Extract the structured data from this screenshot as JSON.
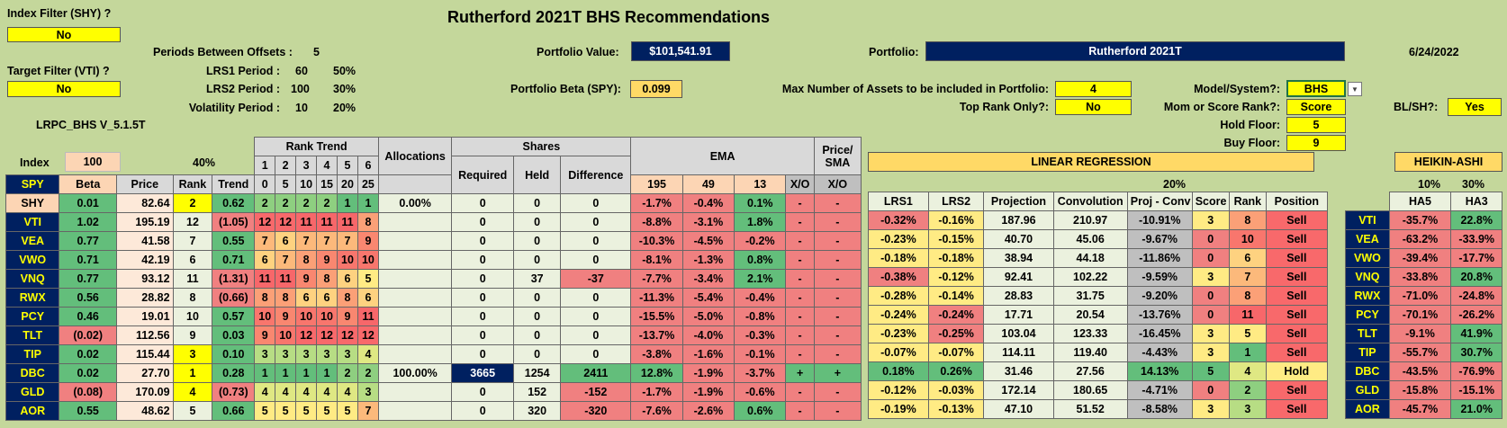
{
  "title": "Rutherford 2021T BHS Recommendations",
  "date": "6/24/2022",
  "index_filter": {
    "label": "Index Filter (SHY) ?",
    "value": "No"
  },
  "target_filter": {
    "label": "Target Filter (VTI) ?",
    "value": "No"
  },
  "version": "LRPC_BHS V_5.1.5T",
  "params": {
    "offsets_label": "Periods Between Offsets :",
    "offsets_value": "5",
    "lrs1_label": "LRS1 Period :",
    "lrs1_value": "60",
    "lrs1_pct": "50%",
    "lrs2_label": "LRS2 Period :",
    "lrs2_value": "100",
    "lrs2_pct": "30%",
    "vol_label": "Volatility Period :",
    "vol_value": "10",
    "vol_pct": "20%"
  },
  "portfolio_value": {
    "label": "Portfolio Value:",
    "value": "$101,541.91"
  },
  "portfolio_beta": {
    "label": "Portfolio Beta (SPY):",
    "value": "0.099"
  },
  "portfolio": {
    "label": "Portfolio:",
    "value": "Rutherford 2021T"
  },
  "max_assets": {
    "label": "Max Number of Assets to be included in Portfolio:",
    "value": "4"
  },
  "top_rank": {
    "label": "Top Rank Only?:",
    "value": "No"
  },
  "model": {
    "label": "Model/System?:",
    "value": "BHS"
  },
  "mom_score": {
    "label": "Mom or Score Rank?:",
    "value": "Score"
  },
  "hold_floor": {
    "label": "Hold Floor:",
    "value": "5"
  },
  "buy_floor": {
    "label": "Buy Floor:",
    "value": "9"
  },
  "blsh": {
    "label": "BL/SH?:",
    "value": "Yes"
  },
  "headers": {
    "index": "Index",
    "index_val": "100",
    "pct40": "40%",
    "spy": "SPY",
    "beta": "Beta",
    "price": "Price",
    "rank": "Rank",
    "trend": "Trend",
    "rank_trend": "Rank Trend",
    "rt_nums": [
      "1",
      "2",
      "3",
      "4",
      "5",
      "6"
    ],
    "rt_offs": [
      "0",
      "5",
      "10",
      "15",
      "20",
      "25"
    ],
    "allocations": "Allocations",
    "shares": "Shares",
    "required": "Required",
    "held": "Held",
    "difference": "Difference",
    "ema": "EMA",
    "ema_periods": [
      "195",
      "49",
      "13"
    ],
    "xo": "X/O",
    "price_sma": "Price/ SMA",
    "xo2": "X/O",
    "lin_reg": "LINEAR REGRESSION",
    "pct20": "20%",
    "lrs1": "LRS1",
    "lrs2": "LRS2",
    "projection": "Projection",
    "convolution": "Convolution",
    "proj_conv": "Proj - Conv",
    "score": "Score",
    "rank2": "Rank",
    "position": "Position",
    "heikin": "HEIKIN-ASHI",
    "pct10": "10%",
    "pct30": "30%",
    "ha5": "HA5",
    "ha3": "HA3"
  },
  "rows": [
    {
      "sym": "SHY",
      "beta": "0.01",
      "price": "82.64",
      "rank": "2",
      "trend": "0.62",
      "rt": [
        "2",
        "2",
        "2",
        "2",
        "1",
        "1"
      ],
      "alloc": "0.00%",
      "req": "0",
      "held": "0",
      "diff": "0",
      "e195": "-1.7%",
      "e49": "-0.4%",
      "e13": "0.1%",
      "xo": "-",
      "psma": "-",
      "lrs1": null,
      "lrs2": null,
      "proj": null,
      "conv": null,
      "pc": null,
      "score": null,
      "rank2": null,
      "pos": null,
      "ha5": null,
      "ha3": null
    },
    {
      "sym": "VTI",
      "beta": "1.02",
      "price": "195.19",
      "rank": "12",
      "trend": "(1.05)",
      "rt": [
        "12",
        "12",
        "11",
        "11",
        "11",
        "8"
      ],
      "alloc": "",
      "req": "0",
      "held": "0",
      "diff": "0",
      "e195": "-8.8%",
      "e49": "-3.1%",
      "e13": "1.8%",
      "xo": "-",
      "psma": "-",
      "lrs1": "-0.32%",
      "lrs2": "-0.16%",
      "proj": "187.96",
      "conv": "210.97",
      "pc": "-10.91%",
      "score": "3",
      "rank2": "8",
      "pos": "Sell",
      "ha5": "-35.7%",
      "ha3": "22.8%"
    },
    {
      "sym": "VEA",
      "beta": "0.77",
      "price": "41.58",
      "rank": "7",
      "trend": "0.55",
      "rt": [
        "7",
        "6",
        "7",
        "7",
        "7",
        "9"
      ],
      "alloc": "",
      "req": "0",
      "held": "0",
      "diff": "0",
      "e195": "-10.3%",
      "e49": "-4.5%",
      "e13": "-0.2%",
      "xo": "-",
      "psma": "-",
      "lrs1": "-0.23%",
      "lrs2": "-0.15%",
      "proj": "40.70",
      "conv": "45.06",
      "pc": "-9.67%",
      "score": "0",
      "rank2": "10",
      "pos": "Sell",
      "ha5": "-63.2%",
      "ha3": "-33.9%"
    },
    {
      "sym": "VWO",
      "beta": "0.71",
      "price": "42.19",
      "rank": "6",
      "trend": "0.71",
      "rt": [
        "6",
        "7",
        "8",
        "9",
        "10",
        "10"
      ],
      "alloc": "",
      "req": "0",
      "held": "0",
      "diff": "0",
      "e195": "-8.1%",
      "e49": "-1.3%",
      "e13": "0.8%",
      "xo": "-",
      "psma": "-",
      "lrs1": "-0.18%",
      "lrs2": "-0.18%",
      "proj": "38.94",
      "conv": "44.18",
      "pc": "-11.86%",
      "score": "0",
      "rank2": "6",
      "pos": "Sell",
      "ha5": "-39.4%",
      "ha3": "-17.7%"
    },
    {
      "sym": "VNQ",
      "beta": "0.77",
      "price": "93.12",
      "rank": "11",
      "trend": "(1.31)",
      "rt": [
        "11",
        "11",
        "9",
        "8",
        "6",
        "5"
      ],
      "alloc": "",
      "req": "0",
      "held": "37",
      "diff": "-37",
      "e195": "-7.7%",
      "e49": "-3.4%",
      "e13": "2.1%",
      "xo": "-",
      "psma": "-",
      "lrs1": "-0.38%",
      "lrs2": "-0.12%",
      "proj": "92.41",
      "conv": "102.22",
      "pc": "-9.59%",
      "score": "3",
      "rank2": "7",
      "pos": "Sell",
      "ha5": "-33.8%",
      "ha3": "20.8%"
    },
    {
      "sym": "RWX",
      "beta": "0.56",
      "price": "28.82",
      "rank": "8",
      "trend": "(0.66)",
      "rt": [
        "8",
        "8",
        "6",
        "6",
        "8",
        "6"
      ],
      "alloc": "",
      "req": "0",
      "held": "0",
      "diff": "0",
      "e195": "-11.3%",
      "e49": "-5.4%",
      "e13": "-0.4%",
      "xo": "-",
      "psma": "-",
      "lrs1": "-0.28%",
      "lrs2": "-0.14%",
      "proj": "28.83",
      "conv": "31.75",
      "pc": "-9.20%",
      "score": "0",
      "rank2": "8",
      "pos": "Sell",
      "ha5": "-71.0%",
      "ha3": "-24.8%"
    },
    {
      "sym": "PCY",
      "beta": "0.46",
      "price": "19.01",
      "rank": "10",
      "trend": "0.57",
      "rt": [
        "10",
        "9",
        "10",
        "10",
        "9",
        "11"
      ],
      "alloc": "",
      "req": "0",
      "held": "0",
      "diff": "0",
      "e195": "-15.5%",
      "e49": "-5.0%",
      "e13": "-0.8%",
      "xo": "-",
      "psma": "-",
      "lrs1": "-0.24%",
      "lrs2": "-0.24%",
      "proj": "17.71",
      "conv": "20.54",
      "pc": "-13.76%",
      "score": "0",
      "rank2": "11",
      "pos": "Sell",
      "ha5": "-70.1%",
      "ha3": "-26.2%"
    },
    {
      "sym": "TLT",
      "beta": "(0.02)",
      "price": "112.56",
      "rank": "9",
      "trend": "0.03",
      "rt": [
        "9",
        "10",
        "12",
        "12",
        "12",
        "12"
      ],
      "alloc": "",
      "req": "0",
      "held": "0",
      "diff": "0",
      "e195": "-13.7%",
      "e49": "-4.0%",
      "e13": "-0.3%",
      "xo": "-",
      "psma": "-",
      "lrs1": "-0.23%",
      "lrs2": "-0.25%",
      "proj": "103.04",
      "conv": "123.33",
      "pc": "-16.45%",
      "score": "3",
      "rank2": "5",
      "pos": "Sell",
      "ha5": "-9.1%",
      "ha3": "41.9%"
    },
    {
      "sym": "TIP",
      "beta": "0.02",
      "price": "115.44",
      "rank": "3",
      "trend": "0.10",
      "rt": [
        "3",
        "3",
        "3",
        "3",
        "3",
        "4"
      ],
      "alloc": "",
      "req": "0",
      "held": "0",
      "diff": "0",
      "e195": "-3.8%",
      "e49": "-1.6%",
      "e13": "-0.1%",
      "xo": "-",
      "psma": "-",
      "lrs1": "-0.07%",
      "lrs2": "-0.07%",
      "proj": "114.11",
      "conv": "119.40",
      "pc": "-4.43%",
      "score": "3",
      "rank2": "1",
      "pos": "Sell",
      "ha5": "-55.7%",
      "ha3": "30.7%"
    },
    {
      "sym": "DBC",
      "beta": "0.02",
      "price": "27.70",
      "rank": "1",
      "trend": "0.28",
      "rt": [
        "1",
        "1",
        "1",
        "1",
        "2",
        "2"
      ],
      "alloc": "100.00%",
      "req": "3665",
      "held": "1254",
      "diff": "2411",
      "e195": "12.8%",
      "e49": "-1.9%",
      "e13": "-3.7%",
      "xo": "+",
      "psma": "+",
      "lrs1": "0.18%",
      "lrs2": "0.26%",
      "proj": "31.46",
      "conv": "27.56",
      "pc": "14.13%",
      "score": "5",
      "rank2": "4",
      "pos": "Hold",
      "ha5": "-43.5%",
      "ha3": "-76.9%"
    },
    {
      "sym": "GLD",
      "beta": "(0.08)",
      "price": "170.09",
      "rank": "4",
      "trend": "(0.73)",
      "rt": [
        "4",
        "4",
        "4",
        "4",
        "4",
        "3"
      ],
      "alloc": "",
      "req": "0",
      "held": "152",
      "diff": "-152",
      "e195": "-1.7%",
      "e49": "-1.9%",
      "e13": "-0.6%",
      "xo": "-",
      "psma": "-",
      "lrs1": "-0.12%",
      "lrs2": "-0.03%",
      "proj": "172.14",
      "conv": "180.65",
      "pc": "-4.71%",
      "score": "0",
      "rank2": "2",
      "pos": "Sell",
      "ha5": "-15.8%",
      "ha3": "-15.1%"
    },
    {
      "sym": "AOR",
      "beta": "0.55",
      "price": "48.62",
      "rank": "5",
      "trend": "0.66",
      "rt": [
        "5",
        "5",
        "5",
        "5",
        "5",
        "7"
      ],
      "alloc": "",
      "req": "0",
      "held": "320",
      "diff": "-320",
      "e195": "-7.6%",
      "e49": "-2.6%",
      "e13": "0.6%",
      "xo": "-",
      "psma": "-",
      "lrs1": "-0.19%",
      "lrs2": "-0.13%",
      "proj": "47.10",
      "conv": "51.52",
      "pc": "-8.58%",
      "score": "3",
      "rank2": "3",
      "pos": "Sell",
      "ha5": "-45.7%",
      "ha3": "21.0%"
    }
  ]
}
